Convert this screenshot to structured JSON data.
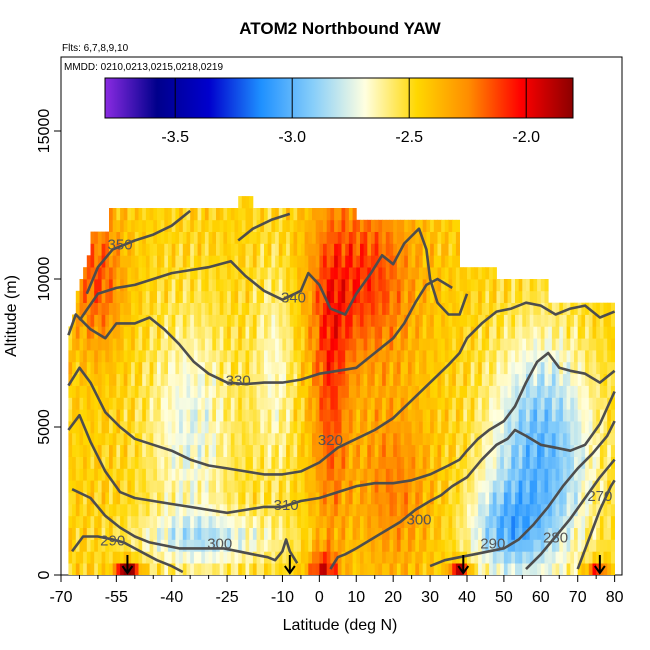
{
  "header": {
    "title": "ATOM2 Northbound YAW",
    "flights": "Flts: 6,7,8,9,10",
    "dates": "MMDD: 0210,0213,0215,0218,0219"
  },
  "chart_data": {
    "type": "heatmap",
    "title": "ATOM2 Northbound YAW",
    "xlabel": "Latitude (deg N)",
    "ylabel": "Altitude (m)",
    "xlim": [
      -70,
      82
    ],
    "ylim": [
      0,
      17500
    ],
    "x_ticks": [
      -70,
      -55,
      -40,
      -25,
      -10,
      0,
      10,
      20,
      30,
      40,
      50,
      60,
      70,
      80
    ],
    "x_tick_labels": [
      "-70",
      "-55",
      "-40",
      "-25",
      "-10",
      "0",
      "10",
      "20",
      "30",
      "40",
      "50",
      "60",
      "70",
      "80"
    ],
    "y_ticks": [
      0,
      5000,
      10000,
      15000
    ],
    "y_tick_labels": [
      "0",
      "5000",
      "10000",
      "15000"
    ],
    "colorbar": {
      "range": [
        -3.8,
        -1.8
      ],
      "ticks": [
        -3.5,
        -3.0,
        -2.5,
        -2.0
      ],
      "tick_labels": [
        "-3.5",
        "-3.0",
        "-2.5",
        "-2.0"
      ],
      "colors": [
        "#8A2BE2",
        "#00008B",
        "#0000CD",
        "#1E90FF",
        "#87CEFA",
        "#FFFFE0",
        "#FFD700",
        "#FF8C00",
        "#FF0000",
        "#8B0000"
      ]
    },
    "contour_labels": [
      {
        "text": "350",
        "lat": -54,
        "alt": 11000
      },
      {
        "text": "340",
        "lat": -7,
        "alt": 9200
      },
      {
        "text": "330",
        "lat": -22,
        "alt": 6400
      },
      {
        "text": "320",
        "lat": 3,
        "alt": 4400
      },
      {
        "text": "310",
        "lat": -9,
        "alt": 2200
      },
      {
        "text": "300",
        "lat": -27,
        "alt": 900
      },
      {
        "text": "300",
        "lat": 27,
        "alt": 1700
      },
      {
        "text": "290",
        "lat": -56,
        "alt": 1000
      },
      {
        "text": "290",
        "lat": 47,
        "alt": 900
      },
      {
        "text": "280",
        "lat": 64,
        "alt": 1100
      },
      {
        "text": "270",
        "lat": 76,
        "alt": 2500
      }
    ],
    "contours": [
      {
        "level": "350",
        "points": [
          [
            -63,
            9500
          ],
          [
            -60,
            10400
          ],
          [
            -56,
            11000
          ],
          [
            -50,
            11300
          ],
          [
            -45,
            11500
          ],
          [
            -40,
            11800
          ],
          [
            -35,
            12300
          ]
        ]
      },
      {
        "level": "350b",
        "points": [
          [
            -22,
            11300
          ],
          [
            -18,
            11700
          ],
          [
            -13,
            12000
          ],
          [
            -8,
            12200
          ]
        ]
      },
      {
        "level": "340",
        "points": [
          [
            -65,
            8600
          ],
          [
            -60,
            9500
          ],
          [
            -55,
            9700
          ],
          [
            -50,
            9800
          ],
          [
            -45,
            10000
          ],
          [
            -40,
            10200
          ],
          [
            -35,
            10300
          ],
          [
            -30,
            10400
          ],
          [
            -24,
            10600
          ],
          [
            -20,
            10100
          ],
          [
            -15,
            9600
          ],
          [
            -10,
            9300
          ],
          [
            -5,
            9600
          ],
          [
            -3,
            10200
          ],
          [
            0,
            9800
          ],
          [
            3,
            9000
          ],
          [
            7,
            8800
          ],
          [
            10,
            9500
          ],
          [
            14,
            10200
          ],
          [
            17,
            10800
          ],
          [
            20,
            10500
          ],
          [
            23,
            11200
          ],
          [
            27,
            11700
          ],
          [
            29,
            11000
          ],
          [
            30,
            10000
          ],
          [
            32,
            9200
          ],
          [
            35,
            8800
          ],
          [
            38,
            8800
          ],
          [
            40,
            9500
          ]
        ]
      },
      {
        "level": "330",
        "points": [
          [
            -68,
            8100
          ],
          [
            -66,
            8800
          ],
          [
            -62,
            8300
          ],
          [
            -58,
            8000
          ],
          [
            -55,
            8500
          ],
          [
            -50,
            8500
          ],
          [
            -46,
            8700
          ],
          [
            -42,
            8300
          ],
          [
            -38,
            7800
          ],
          [
            -34,
            7200
          ],
          [
            -30,
            6800
          ],
          [
            -25,
            6500
          ],
          [
            -20,
            6450
          ],
          [
            -15,
            6500
          ],
          [
            -10,
            6500
          ],
          [
            -5,
            6600
          ],
          [
            0,
            6800
          ],
          [
            5,
            6900
          ],
          [
            10,
            7000
          ],
          [
            15,
            7500
          ],
          [
            20,
            8000
          ],
          [
            23,
            8500
          ],
          [
            26,
            9200
          ],
          [
            29,
            9800
          ],
          [
            32,
            10000
          ],
          [
            36,
            9700
          ]
        ]
      },
      {
        "level": "320",
        "points": [
          [
            -68,
            6400
          ],
          [
            -65,
            7000
          ],
          [
            -62,
            6500
          ],
          [
            -58,
            5500
          ],
          [
            -54,
            5000
          ],
          [
            -50,
            4600
          ],
          [
            -45,
            4400
          ],
          [
            -40,
            4200
          ],
          [
            -35,
            3900
          ],
          [
            -30,
            3700
          ],
          [
            -25,
            3600
          ],
          [
            -20,
            3500
          ],
          [
            -15,
            3400
          ],
          [
            -10,
            3400
          ],
          [
            -5,
            3500
          ],
          [
            0,
            3800
          ],
          [
            5,
            4300
          ],
          [
            10,
            4600
          ],
          [
            15,
            4900
          ],
          [
            20,
            5300
          ],
          [
            25,
            5900
          ],
          [
            30,
            6500
          ],
          [
            35,
            7100
          ],
          [
            38,
            7500
          ],
          [
            40,
            8000
          ],
          [
            44,
            8500
          ],
          [
            48,
            8900
          ],
          [
            52,
            9000
          ],
          [
            56,
            9200
          ],
          [
            60,
            9100
          ],
          [
            64,
            8800
          ],
          [
            68,
            9000
          ],
          [
            72,
            9100
          ],
          [
            76,
            8700
          ],
          [
            80,
            8900
          ]
        ]
      },
      {
        "level": "310",
        "points": [
          [
            -68,
            4900
          ],
          [
            -65,
            5400
          ],
          [
            -62,
            4500
          ],
          [
            -58,
            3500
          ],
          [
            -54,
            2800
          ],
          [
            -50,
            2600
          ],
          [
            -45,
            2500
          ],
          [
            -40,
            2400
          ],
          [
            -35,
            2300
          ],
          [
            -30,
            2200
          ],
          [
            -25,
            2100
          ],
          [
            -20,
            2200
          ],
          [
            -15,
            2300
          ],
          [
            -10,
            2300
          ],
          [
            -5,
            2500
          ],
          [
            0,
            2600
          ],
          [
            5,
            2800
          ],
          [
            10,
            3000
          ],
          [
            15,
            3100
          ],
          [
            20,
            3100
          ],
          [
            25,
            3200
          ],
          [
            30,
            3400
          ],
          [
            35,
            3700
          ],
          [
            38,
            3900
          ],
          [
            40,
            4200
          ],
          [
            43,
            4600
          ],
          [
            46,
            4900
          ],
          [
            50,
            5200
          ],
          [
            53,
            5700
          ],
          [
            56,
            6500
          ],
          [
            59,
            7200
          ],
          [
            62,
            7500
          ],
          [
            65,
            7000
          ],
          [
            68,
            6900
          ],
          [
            72,
            6800
          ],
          [
            76,
            6500
          ],
          [
            80,
            6900
          ]
        ]
      },
      {
        "level": "300",
        "points": [
          [
            -67,
            2900
          ],
          [
            -62,
            2600
          ],
          [
            -58,
            2000
          ],
          [
            -54,
            1600
          ],
          [
            -50,
            1300
          ],
          [
            -46,
            1100
          ],
          [
            -42,
            1000
          ],
          [
            -38,
            900
          ],
          [
            -34,
            900
          ],
          [
            -30,
            900
          ],
          [
            -26,
            900
          ],
          [
            -22,
            800
          ],
          [
            -18,
            700
          ],
          [
            -14,
            600
          ],
          [
            -12,
            500
          ],
          [
            -10,
            800
          ],
          [
            -9,
            1200
          ],
          [
            -8,
            800
          ],
          [
            -6,
            400
          ]
        ]
      },
      {
        "level": "300b",
        "points": [
          [
            3,
            200
          ],
          [
            5,
            600
          ],
          [
            7,
            700
          ],
          [
            10,
            900
          ],
          [
            14,
            1200
          ],
          [
            18,
            1500
          ],
          [
            22,
            1800
          ],
          [
            26,
            2200
          ],
          [
            30,
            2500
          ],
          [
            33,
            2700
          ],
          [
            36,
            3000
          ],
          [
            40,
            3300
          ],
          [
            44,
            3900
          ],
          [
            48,
            4400
          ],
          [
            51,
            4600
          ],
          [
            53,
            4900
          ],
          [
            56,
            4700
          ],
          [
            60,
            4400
          ],
          [
            64,
            4300
          ],
          [
            68,
            4200
          ],
          [
            72,
            4400
          ],
          [
            76,
            5100
          ],
          [
            80,
            6200
          ]
        ]
      },
      {
        "level": "290",
        "points": [
          [
            -67,
            800
          ],
          [
            -64,
            1300
          ],
          [
            -60,
            1300
          ],
          [
            -56,
            1200
          ],
          [
            -53,
            1100
          ],
          [
            -50,
            900
          ],
          [
            -47,
            700
          ],
          [
            -44,
            500
          ],
          [
            -40,
            300
          ],
          [
            -37,
            100
          ]
        ]
      },
      {
        "level": "290b",
        "points": [
          [
            30,
            300
          ],
          [
            34,
            500
          ],
          [
            38,
            600
          ],
          [
            42,
            700
          ],
          [
            46,
            800
          ],
          [
            50,
            900
          ],
          [
            54,
            1200
          ],
          [
            58,
            1700
          ],
          [
            62,
            2300
          ],
          [
            66,
            3000
          ],
          [
            70,
            3600
          ],
          [
            74,
            4100
          ],
          [
            78,
            4700
          ],
          [
            80,
            5200
          ]
        ]
      },
      {
        "level": "280",
        "points": [
          [
            56,
            200
          ],
          [
            60,
            700
          ],
          [
            64,
            1300
          ],
          [
            68,
            1900
          ],
          [
            72,
            2600
          ],
          [
            76,
            3300
          ],
          [
            80,
            3900
          ]
        ]
      },
      {
        "level": "270",
        "points": [
          [
            70,
            200
          ],
          [
            73,
            1200
          ],
          [
            76,
            2200
          ],
          [
            79,
            3000
          ],
          [
            80,
            3200
          ]
        ]
      }
    ],
    "arrows_lat": [
      -52,
      -8,
      39,
      76
    ]
  }
}
